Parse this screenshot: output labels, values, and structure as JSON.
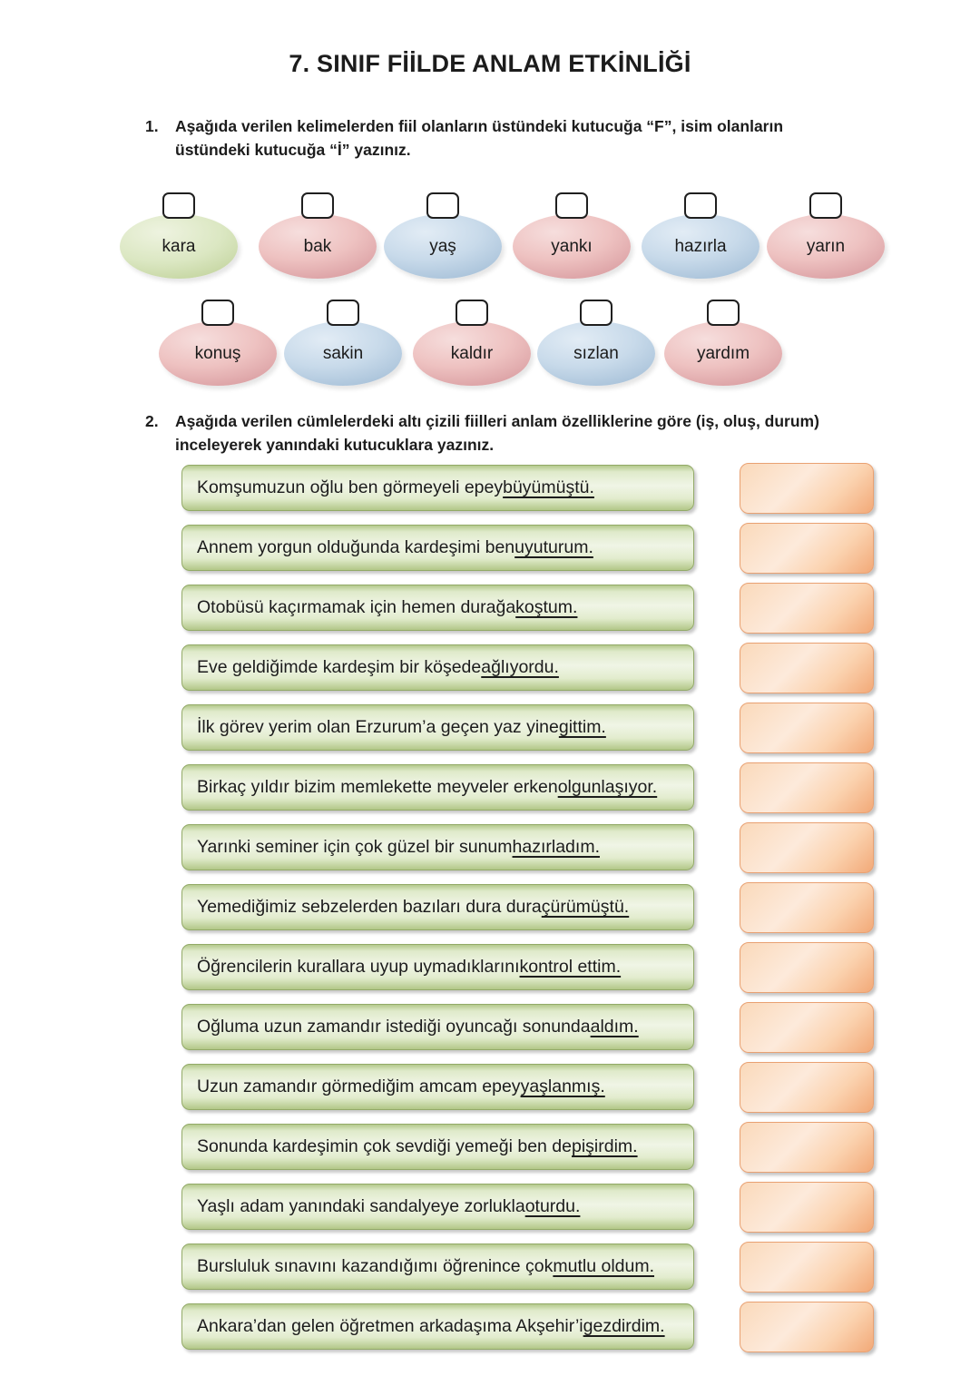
{
  "title": "7. SINIF FİİLDE ANLAM ETKİNLİĞİ",
  "q1": {
    "number": "1.",
    "instruction": "Aşağıda verilen kelimelerden fiil olanların üstündeki kutucuğa “F”, isim olanların üstündeki kutucuğa “İ” yazınız.",
    "rows": [
      [
        {
          "word": "kara",
          "color": "green"
        },
        {
          "word": "bak",
          "color": "pink"
        },
        {
          "word": "yaş",
          "color": "blue"
        },
        {
          "word": "yankı",
          "color": "pink"
        },
        {
          "word": "hazırla",
          "color": "blue"
        },
        {
          "word": "yarın",
          "color": "pink"
        }
      ],
      [
        {
          "word": "konuş",
          "color": "pink"
        },
        {
          "word": "sakin",
          "color": "blue"
        },
        {
          "word": "kaldır",
          "color": "pink"
        },
        {
          "word": "sızlan",
          "color": "blue"
        },
        {
          "word": "yardım",
          "color": "pink"
        }
      ]
    ]
  },
  "q2": {
    "number": "2.",
    "instruction": "Aşağıda verilen cümlelerdeki altı çizili fiilleri anlam özelliklerine göre (iş, oluş, durum) inceleyerek yanındaki kutucuklara yazınız.",
    "sentences": [
      {
        "pre": "Komşumuzun oğlu ben görmeyeli epey ",
        "verb": "büyümüştü."
      },
      {
        "pre": "Annem yorgun olduğunda kardeşimi ben ",
        "verb": "uyuturum."
      },
      {
        "pre": "Otobüsü kaçırmamak için hemen durağa ",
        "verb": "koştum."
      },
      {
        "pre": "Eve geldiğimde kardeşim bir köşede ",
        "verb": "ağlıyordu."
      },
      {
        "pre": "İlk görev yerim olan Erzurum’a geçen yaz yine ",
        "verb": "gittim."
      },
      {
        "pre": "Birkaç yıldır bizim memlekette meyveler erken ",
        "verb": "olgunlaşıyor."
      },
      {
        "pre": "Yarınki seminer için çok güzel bir sunum ",
        "verb": "hazırladım."
      },
      {
        "pre": "Yemediğimiz sebzelerden bazıları dura dura ",
        "verb": "çürümüştü."
      },
      {
        "pre": "Öğrencilerin kurallara uyup uymadıklarını ",
        "verb": "kontrol ettim."
      },
      {
        "pre": "Oğluma uzun zamandır istediği oyuncağı sonunda ",
        "verb": "aldım."
      },
      {
        "pre": "Uzun zamandır görmediğim amcam epey ",
        "verb": "yaşlanmış."
      },
      {
        "pre": "Sonunda kardeşimin çok sevdiği yemeği ben de ",
        "verb": "pişirdim."
      },
      {
        "pre": "Yaşlı adam yanındaki sandalyeye zorlukla ",
        "verb": "oturdu."
      },
      {
        "pre": "Bursluluk sınavını kazandığımı öğrenince çok ",
        "verb": "mutlu oldum."
      },
      {
        "pre": "Ankara’dan gelen öğretmen arkadaşıma Akşehir’i ",
        "verb": "gezdirdim."
      }
    ]
  },
  "colors": {
    "text": "#1c1c1c",
    "bubble_green_light": "#eef3e0",
    "bubble_green_edge": "#c3d49e",
    "bubble_pink_light": "#f6dedd",
    "bubble_pink_edge": "#d99da1",
    "bubble_blue_light": "#e2ecf5",
    "bubble_blue_edge": "#a6c0d8",
    "bar_green_light": "#f0f5e6",
    "bar_green_edge": "#b2c788",
    "bar_green_border": "#93aa68",
    "answer_orange_light": "#fdeadb",
    "answer_orange_edge": "#f2a978",
    "answer_orange_border": "#e9a172"
  }
}
